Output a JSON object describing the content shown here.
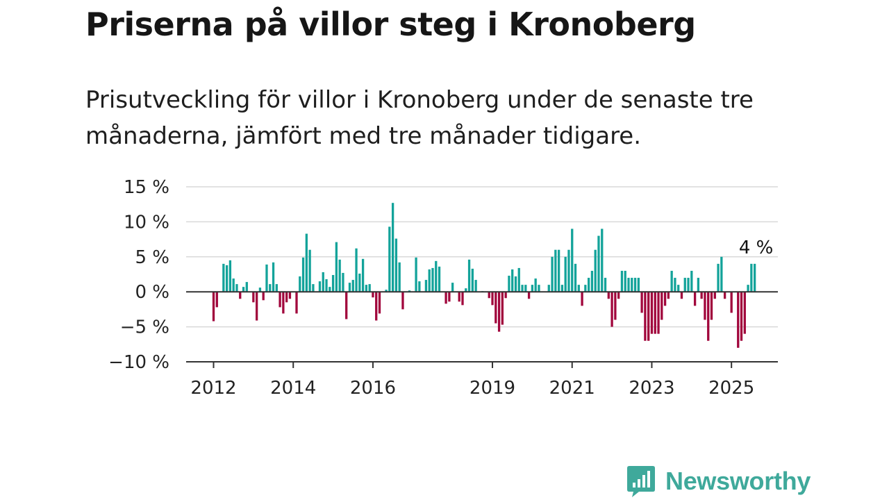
{
  "title": "Priserna på villor steg i Kronoberg",
  "subtitle": "Prisutveckling för villor i Kronoberg under de senaste tre månaderna, jämfört med tre månader tidigare.",
  "brand": {
    "name": "Newsworthy",
    "icon": "newsworthy-logo-icon"
  },
  "colors": {
    "positive": "#13a39a",
    "negative": "#a1063c",
    "grid": "#d9d9d9",
    "axis": "#333333"
  },
  "chart_data": {
    "type": "bar",
    "ylim": [
      -10,
      15
    ],
    "yticks": [
      15,
      10,
      5,
      0,
      -5,
      -10
    ],
    "ytick_labels": [
      "15 %",
      "10 %",
      "5 %",
      "0 %",
      "−5 %",
      "−10 %"
    ],
    "xticks": [
      {
        "label": "2012",
        "year": 2012
      },
      {
        "label": "2014",
        "year": 2014
      },
      {
        "label": "2016",
        "year": 2016
      },
      {
        "label": "2019",
        "year": 2019
      },
      {
        "label": "2021",
        "year": 2021
      },
      {
        "label": "2023",
        "year": 2023
      },
      {
        "label": "2025",
        "year": 2025
      }
    ],
    "start": "2012-01",
    "grid": true,
    "last_value_label": "4 %",
    "values": [
      -4.2,
      -2.2,
      0,
      4.0,
      3.8,
      4.5,
      1.9,
      1.1,
      -1.0,
      0.7,
      1.4,
      0,
      -1.5,
      -4.1,
      0.6,
      -1.2,
      3.9,
      1.1,
      4.2,
      1.1,
      -2.2,
      -3.1,
      -1.5,
      -1.0,
      0,
      -3.1,
      2.2,
      4.9,
      8.3,
      6.0,
      1.1,
      0,
      1.5,
      2.8,
      1.8,
      0.7,
      2.4,
      7.1,
      4.6,
      2.7,
      -3.9,
      1.3,
      1.7,
      6.2,
      2.6,
      4.7,
      1.0,
      1.1,
      -0.8,
      -4.1,
      -3.1,
      0,
      0.3,
      9.3,
      12.7,
      7.6,
      4.2,
      -2.5,
      0,
      0.2,
      0,
      4.9,
      1.5,
      0,
      1.7,
      3.2,
      3.4,
      4.4,
      3.6,
      0,
      -1.7,
      -1.4,
      1.3,
      0,
      -1.4,
      -1.9,
      0.5,
      4.6,
      3.3,
      1.7,
      0,
      0.1,
      0,
      -0.9,
      -1.9,
      -4.5,
      -5.7,
      -4.7,
      -0.9,
      2.3,
      3.2,
      2.2,
      3.4,
      1.0,
      1.0,
      -1.0,
      1.0,
      1.9,
      1.0,
      0,
      0,
      1.0,
      5.0,
      6.0,
      6.0,
      1.0,
      5.0,
      6.0,
      9.0,
      4.0,
      1.0,
      -2.0,
      1.0,
      2.0,
      3.0,
      6.0,
      8.0,
      9.0,
      2.0,
      -1.0,
      -5.0,
      -4.0,
      -1.0,
      3.0,
      3.0,
      2.0,
      2.0,
      2.0,
      2.0,
      -3.0,
      -7.0,
      -7.0,
      -6.0,
      -6.0,
      -6.0,
      -4.0,
      -2.0,
      -1.0,
      3.0,
      2.0,
      1.0,
      -1.0,
      2.0,
      2.0,
      3.0,
      -2.0,
      2.0,
      -1.0,
      -4.0,
      -7.0,
      -4.0,
      -1.0,
      4.0,
      5.0,
      -1.0,
      0,
      -3.0,
      0,
      -8.0,
      -7.0,
      -6.0,
      1.0,
      4.0,
      4.0
    ]
  }
}
